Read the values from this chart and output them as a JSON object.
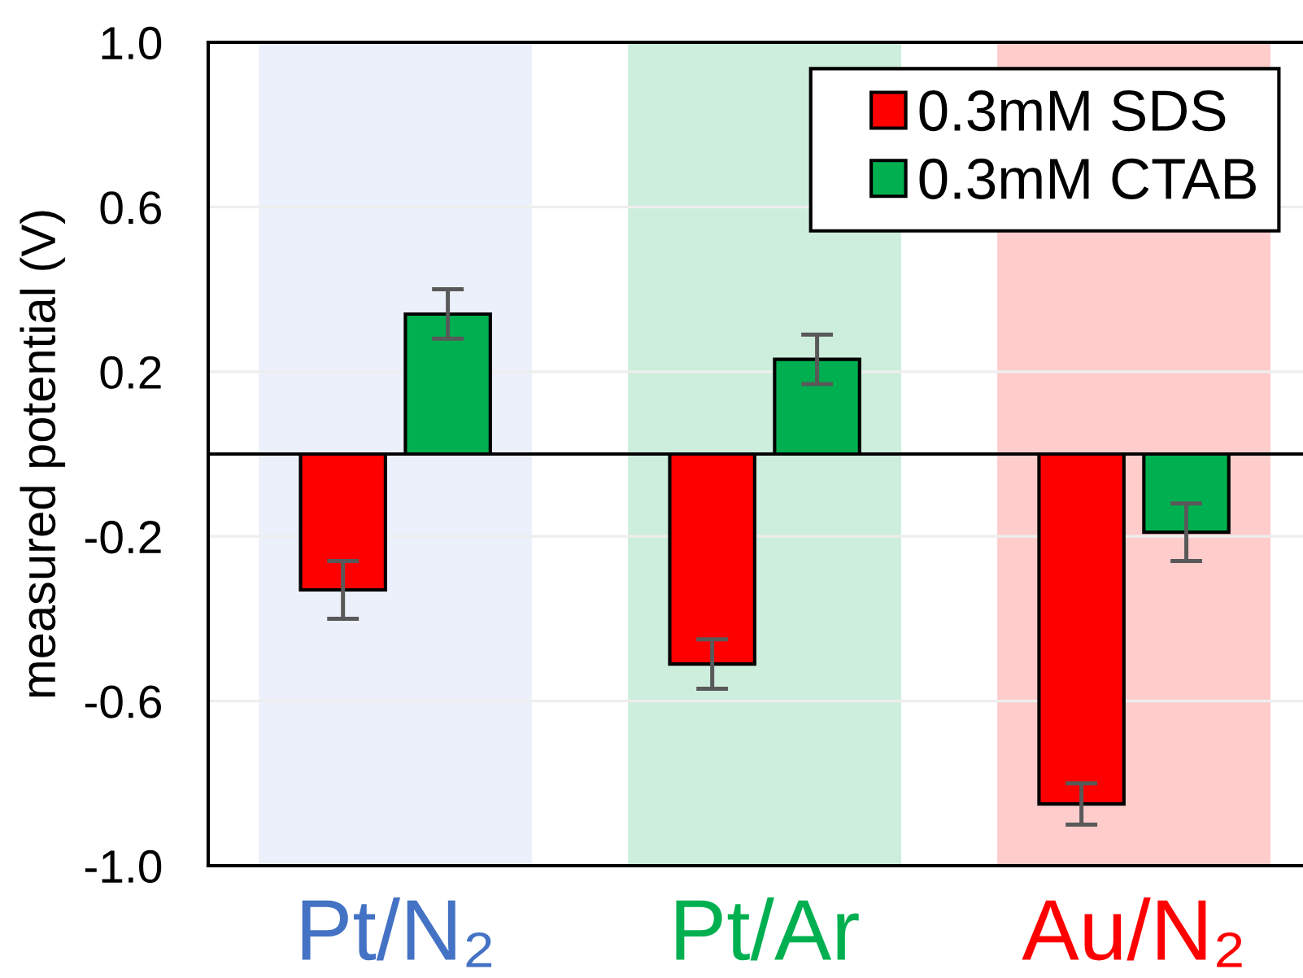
{
  "chart_data": {
    "type": "bar",
    "ylabel": "measured potential (V)",
    "categories": [
      "Pt/N₂",
      "Pt/Ar",
      "Au/N₂"
    ],
    "series": [
      {
        "name": "0.3mM SDS",
        "color": "#ff0000",
        "values": [
          -0.33,
          -0.51,
          -0.85
        ],
        "errors": [
          0.07,
          0.06,
          0.05
        ]
      },
      {
        "name": "0.3mM CTAB",
        "color": "#00b050",
        "values": [
          0.34,
          0.23,
          -0.19
        ],
        "errors": [
          0.06,
          0.06,
          0.07
        ]
      }
    ],
    "ylim": [
      -1.0,
      1.0
    ],
    "yticks": [
      {
        "value": -1.0,
        "label": "-1.0"
      },
      -0.6,
      -0.2,
      0.2,
      0.6,
      {
        "value": 1.0,
        "label": "1.0"
      }
    ],
    "ref_lines": [
      {
        "axis": "y",
        "value": 0,
        "color": "#000000"
      }
    ],
    "bands": [
      {
        "axis": "x",
        "from": "Pt/N₂",
        "to": "Pt/N₂",
        "color": "#ebf0fa"
      },
      {
        "axis": "x",
        "from": "Pt/Ar",
        "to": "Pt/Ar",
        "color": "#cdeedc"
      },
      {
        "axis": "x",
        "from": "Au/N₂",
        "to": "Au/N₂",
        "color": "#ffcccc"
      }
    ],
    "grid": "y",
    "legend": "top right"
  }
}
